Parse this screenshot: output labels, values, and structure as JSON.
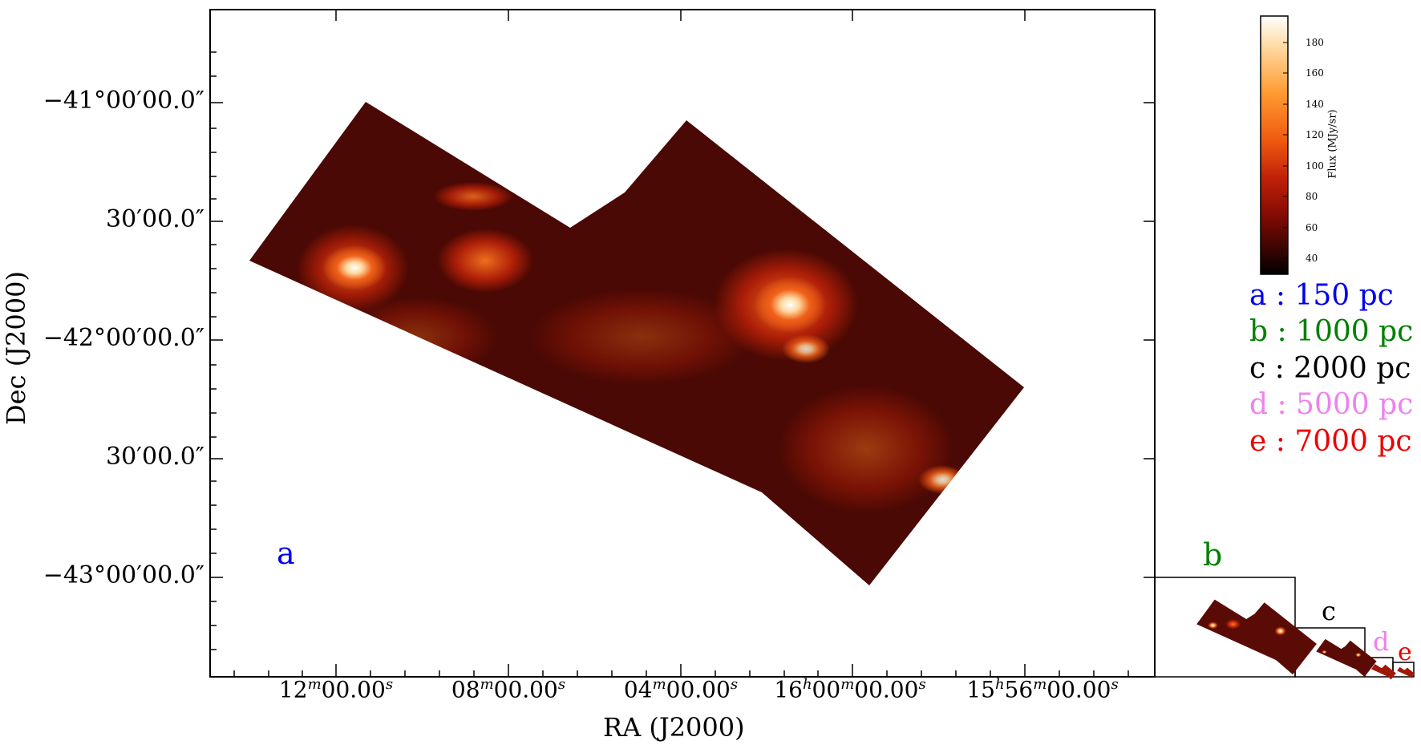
{
  "main_panel": {
    "ylabel": "Dec (J2000)",
    "xlabel": "RA (J2000)",
    "yticks": [
      "−41°00′00.0″",
      "30′00.0″",
      "−42°00′00.0″",
      "30′00.0″",
      "−43°00′00.0″"
    ],
    "xticks": [
      {
        "base": "12",
        "sup1": "m",
        "mid": "00.00",
        "sup2": "s"
      },
      {
        "base": "08",
        "sup1": "m",
        "mid": "00.00",
        "sup2": "s"
      },
      {
        "base": "04",
        "sup1": "m",
        "mid": "00.00",
        "sup2": "s"
      },
      {
        "base": "16",
        "sup1": "h",
        "mid": "00",
        "sup1b": "m",
        "mid2": "00.00",
        "sup2": "s"
      },
      {
        "base": "15",
        "sup1": "h",
        "mid": "56",
        "sup1b": "m",
        "mid2": "00.00",
        "sup2": "s"
      }
    ],
    "panel_letter": "a"
  },
  "colorbar": {
    "label": "Flux (MJy/sr)",
    "ticks": [
      "180",
      "160",
      "140",
      "120",
      "100",
      "80",
      "60",
      "40"
    ],
    "colormap": [
      "#ffffff",
      "#ffd9a0",
      "#ff9a30",
      "#f05a10",
      "#c02008",
      "#800a04",
      "#3a0502",
      "#000000"
    ]
  },
  "scales": [
    {
      "text": "a : 150 pc",
      "color": "#0000ee"
    },
    {
      "text": "b : 1000 pc",
      "color": "#008000"
    },
    {
      "text": "c : 2000 pc",
      "color": "#000000"
    },
    {
      "text": "d : 5000 pc",
      "color": "#ee82ee"
    },
    {
      "text": "e : 7000 pc",
      "color": "#ee0000"
    }
  ],
  "insets": [
    {
      "letter": "b",
      "color": "#008000"
    },
    {
      "letter": "c",
      "color": "#000000"
    },
    {
      "letter": "d",
      "color": "#ee82ee"
    },
    {
      "letter": "e",
      "color": "#ee0000"
    }
  ]
}
